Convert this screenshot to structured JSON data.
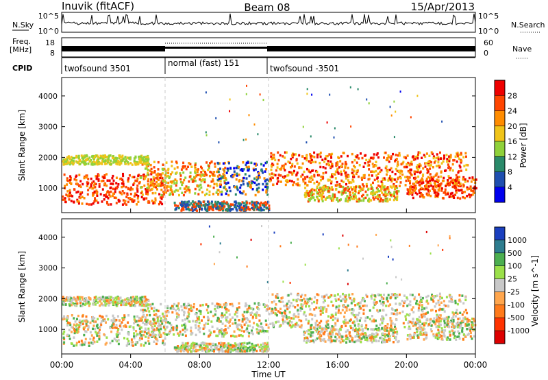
{
  "header": {
    "station": "Inuvik (fitACF)",
    "beam": "Beam 08",
    "date": "15/Apr/2013"
  },
  "strips": {
    "nsky_label": "N.Sky",
    "nsky_ticks": [
      "10^5",
      "10^0"
    ],
    "nsearch_label": "N.Search",
    "nsearch_ticks": [
      "10^5",
      "10^0"
    ],
    "freq_label_1": "Freq.",
    "freq_label_2": "[MHz]",
    "freq_ticks": [
      "18",
      "8"
    ],
    "nave_label": "Nave",
    "nave_ticks": [
      "60",
      "0"
    ],
    "cpid_label": "CPID",
    "cpid_segments": [
      {
        "label": "twofsound 3501",
        "start_h": 0,
        "end_h": 6
      },
      {
        "label": "normal (fast) 151",
        "start_h": 6,
        "end_h": 12
      },
      {
        "label": "twofsound -3501",
        "start_h": 12,
        "end_h": 24
      }
    ]
  },
  "chart_data": [
    {
      "type": "heatmap",
      "title": "",
      "xlabel": "Time UT",
      "ylabel": "Slant Range [km]",
      "xlim_hours": [
        0,
        24
      ],
      "ylim_km": [
        200,
        4600
      ],
      "x_ticks": [
        "00:00",
        "04:00",
        "08:00",
        "12:00",
        "16:00",
        "20:00",
        "00:00"
      ],
      "y_ticks": [
        1000,
        2000,
        3000,
        4000
      ],
      "colorbar": {
        "label": "Power [dB]",
        "ticks": [
          "4",
          "8",
          "12",
          "16",
          "20",
          "24",
          "28"
        ],
        "colors": [
          "#0000ee",
          "#1f4fb0",
          "#2a8a6a",
          "#8fd13a",
          "#f0c419",
          "#ff8c00",
          "#ff4500",
          "#ee0000"
        ]
      }
    },
    {
      "type": "heatmap",
      "title": "",
      "xlabel": "Time UT",
      "ylabel": "Slant Range [km]",
      "xlim_hours": [
        0,
        24
      ],
      "ylim_km": [
        200,
        4600
      ],
      "x_ticks": [
        "00:00",
        "04:00",
        "08:00",
        "12:00",
        "16:00",
        "20:00",
        "00:00"
      ],
      "y_ticks": [
        1000,
        2000,
        3000,
        4000
      ],
      "colorbar": {
        "label": "Velocity [m s^-1]",
        "ticks": [
          "1000",
          "500",
          "100",
          "25",
          "-25",
          "-100",
          "-500",
          "-1000"
        ],
        "colors": [
          "#1a3fbf",
          "#2e7d8f",
          "#4caf50",
          "#9be04a",
          "#c8c8c8",
          "#ffa64d",
          "#ff7a1a",
          "#ff3300",
          "#dd0000"
        ]
      }
    }
  ]
}
